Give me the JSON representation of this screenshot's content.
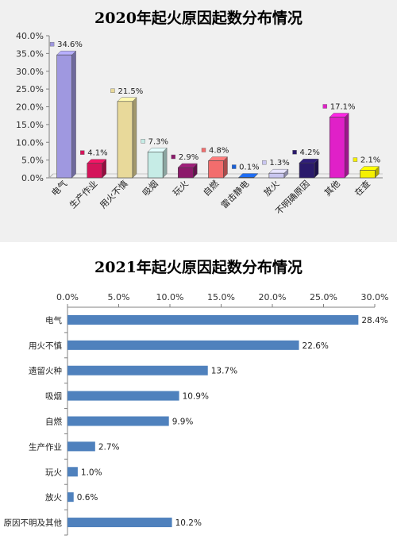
{
  "chart_data": [
    {
      "type": "bar",
      "title": "2020年起火原因起数分布情况",
      "categories": [
        "电气",
        "生产作业",
        "用火不慎",
        "吸烟",
        "玩火",
        "自燃",
        "雷击静电",
        "放火",
        "不明确原因",
        "其他",
        "在查"
      ],
      "values": [
        34.6,
        4.1,
        21.5,
        7.3,
        2.9,
        4.8,
        0.1,
        1.3,
        4.2,
        17.1,
        2.1
      ],
      "value_labels": [
        "34.6%",
        "4.1%",
        "21.5%",
        "7.3%",
        "2.9%",
        "4.8%",
        "0.1%",
        "1.3%",
        "4.2%",
        "17.1%",
        "2.1%"
      ],
      "colors": [
        "#9f98e0",
        "#d4145a",
        "#e8d99a",
        "#c6ece6",
        "#8c1a6b",
        "#f26d6d",
        "#1a5fd4",
        "#c9c6f0",
        "#2a1a6b",
        "#e020c8",
        "#f5f000"
      ],
      "ylim": [
        0,
        40
      ],
      "yticks": [
        "0.0%",
        "5.0%",
        "10.0%",
        "15.0%",
        "20.0%",
        "25.0%",
        "30.0%",
        "35.0%",
        "40.0%"
      ],
      "ytick_values": [
        0,
        5,
        10,
        15,
        20,
        25,
        30,
        35,
        40
      ],
      "legend": "none",
      "grid": false
    },
    {
      "type": "bar",
      "orientation": "horizontal",
      "title": "2021年起火原因起数分布情况",
      "categories": [
        "电气",
        "用火不慎",
        "遗留火种",
        "吸烟",
        "自燃",
        "生产作业",
        "玩火",
        "放火",
        "原因不明及其他"
      ],
      "values": [
        28.4,
        22.6,
        13.7,
        10.9,
        9.9,
        2.7,
        1.0,
        0.6,
        10.2
      ],
      "value_labels": [
        "28.4%",
        "22.6%",
        "13.7%",
        "10.9%",
        "9.9%",
        "2.7%",
        "1.0%",
        "0.6%",
        "10.2%"
      ],
      "color": "#4f81bd",
      "xlim": [
        0,
        30
      ],
      "xticks": [
        "0.0%",
        "5.0%",
        "10.0%",
        "15.0%",
        "20.0%",
        "25.0%",
        "30.0%"
      ],
      "xtick_values": [
        0,
        5,
        10,
        15,
        20,
        25,
        30
      ],
      "legend": "none",
      "grid": false
    }
  ]
}
